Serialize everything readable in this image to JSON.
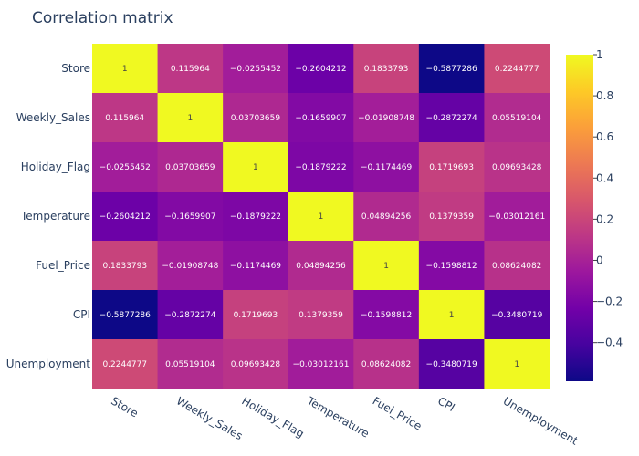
{
  "chart_data": {
    "type": "heatmap",
    "title": "Correlation matrix",
    "x_labels": [
      "Store",
      "Weekly_Sales",
      "Holiday_Flag",
      "Temperature",
      "Fuel_Price",
      "CPI",
      "Unemployment"
    ],
    "y_labels": [
      "Store",
      "Weekly_Sales",
      "Holiday_Flag",
      "Temperature",
      "Fuel_Price",
      "CPI",
      "Unemployment"
    ],
    "z": [
      [
        1,
        0.115964,
        -0.0255452,
        -0.2604212,
        0.1833793,
        -0.5877286,
        0.2244777
      ],
      [
        0.115964,
        1,
        0.03703659,
        -0.1659907,
        -0.01908748,
        -0.2872274,
        0.05519104
      ],
      [
        -0.0255452,
        0.03703659,
        1,
        -0.1879222,
        -0.1174469,
        0.1719693,
        0.09693428
      ],
      [
        -0.2604212,
        -0.1659907,
        -0.1879222,
        1,
        0.04894256,
        0.1379359,
        -0.03012161
      ],
      [
        0.1833793,
        -0.01908748,
        -0.1174469,
        0.04894256,
        1,
        -0.1598812,
        0.08624082
      ],
      [
        -0.5877286,
        -0.2872274,
        0.1719693,
        0.1379359,
        -0.1598812,
        1,
        -0.3480719
      ],
      [
        0.2244777,
        0.05519104,
        0.09693428,
        -0.03012161,
        0.08624082,
        -0.3480719,
        1
      ]
    ],
    "z_labels": [
      [
        "1",
        "0.115964",
        "−0.0255452",
        "−0.2604212",
        "0.1833793",
        "−0.5877286",
        "0.2244777"
      ],
      [
        "0.115964",
        "1",
        "0.03703659",
        "−0.1659907",
        "−0.01908748",
        "−0.2872274",
        "0.05519104"
      ],
      [
        "−0.0255452",
        "0.03703659",
        "1",
        "−0.1879222",
        "−0.1174469",
        "0.1719693",
        "0.09693428"
      ],
      [
        "−0.2604212",
        "−0.1659907",
        "−0.1879222",
        "1",
        "0.04894256",
        "0.1379359",
        "−0.03012161"
      ],
      [
        "0.1833793",
        "−0.01908748",
        "−0.1174469",
        "0.04894256",
        "1",
        "−0.1598812",
        "0.08624082"
      ],
      [
        "−0.5877286",
        "−0.2872274",
        "0.1719693",
        "0.1379359",
        "−0.1598812",
        "1",
        "−0.3480719"
      ],
      [
        "0.2244777",
        "0.05519104",
        "0.09693428",
        "−0.03012161",
        "0.08624082",
        "−0.3480719",
        "1"
      ]
    ],
    "zmin": -0.5877286,
    "zmax": 1,
    "colorscale": "Plasma",
    "colorbar_ticks": [
      {
        "value": 1,
        "label": "1"
      },
      {
        "value": 0.8,
        "label": "0.8"
      },
      {
        "value": 0.6,
        "label": "0.6"
      },
      {
        "value": 0.4,
        "label": "0.4"
      },
      {
        "value": 0.2,
        "label": "0.2"
      },
      {
        "value": 0,
        "label": "0"
      },
      {
        "value": -0.2,
        "label": "−0.2"
      },
      {
        "value": -0.4,
        "label": "−0.4"
      }
    ],
    "x_tick_rotation_deg": 30
  }
}
